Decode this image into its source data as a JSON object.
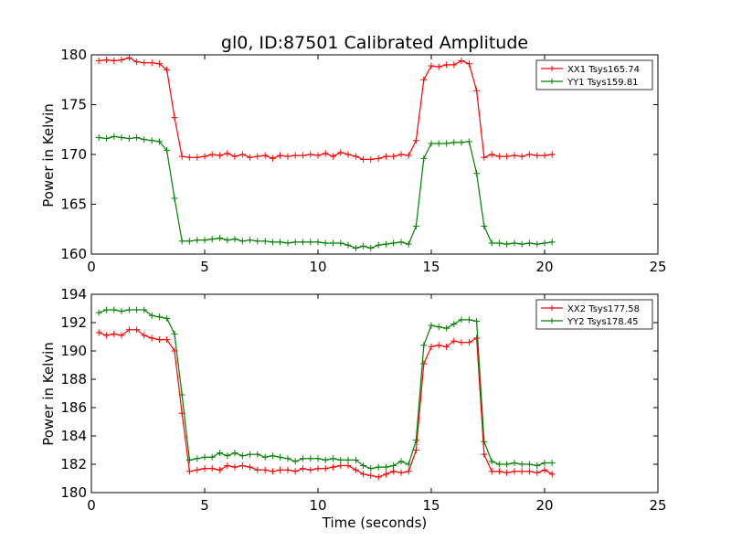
{
  "chart_data": [
    {
      "type": "line",
      "title": "gl0, ID:87501 Calibrated Amplitude",
      "xlabel": "",
      "ylabel": "Power in Kelvin",
      "xlim": [
        0,
        25
      ],
      "ylim": [
        160,
        180
      ],
      "xticks": [
        0,
        5,
        10,
        15,
        20,
        25
      ],
      "yticks": [
        160,
        165,
        170,
        175,
        180
      ],
      "legend_position": "top-right",
      "x": [
        0.33,
        0.67,
        1.0,
        1.33,
        1.67,
        2.0,
        2.33,
        2.67,
        3.0,
        3.33,
        3.67,
        4.0,
        4.33,
        4.67,
        5.0,
        5.33,
        5.67,
        6.0,
        6.33,
        6.67,
        7.0,
        7.33,
        7.67,
        8.0,
        8.33,
        8.67,
        9.0,
        9.33,
        9.67,
        10.0,
        10.33,
        10.67,
        11.0,
        11.33,
        11.67,
        12.0,
        12.33,
        12.67,
        13.0,
        13.33,
        13.67,
        14.0,
        14.33,
        14.67,
        15.0,
        15.33,
        15.67,
        16.0,
        16.33,
        16.67,
        17.0,
        17.33,
        17.67,
        18.0,
        18.33,
        18.67,
        19.0,
        19.33,
        19.67,
        20.0,
        20.33
      ],
      "series": [
        {
          "name": "XX1 Tsys165.74",
          "color": "#ff0000",
          "values": [
            179.4,
            179.5,
            179.4,
            179.5,
            179.7,
            179.3,
            179.2,
            179.2,
            179.1,
            178.5,
            173.7,
            169.8,
            169.7,
            169.7,
            169.8,
            170.0,
            169.9,
            170.1,
            169.8,
            170.0,
            169.7,
            169.8,
            169.9,
            169.6,
            169.9,
            169.8,
            169.9,
            169.9,
            170.0,
            169.9,
            170.1,
            169.8,
            170.2,
            170.0,
            169.8,
            169.5,
            169.5,
            169.6,
            169.8,
            169.8,
            170.0,
            169.9,
            171.4,
            177.5,
            178.9,
            178.8,
            179.0,
            179.0,
            179.4,
            179.1,
            176.4,
            169.7,
            170.0,
            169.8,
            169.8,
            169.9,
            169.8,
            170.0,
            169.9,
            169.9,
            170.0
          ]
        },
        {
          "name": "YY1 Tsys159.81",
          "color": "#008000",
          "values": [
            171.7,
            171.6,
            171.8,
            171.7,
            171.6,
            171.7,
            171.5,
            171.4,
            171.3,
            170.4,
            165.6,
            161.3,
            161.3,
            161.4,
            161.4,
            161.5,
            161.6,
            161.4,
            161.5,
            161.3,
            161.4,
            161.3,
            161.3,
            161.2,
            161.2,
            161.1,
            161.2,
            161.2,
            161.2,
            161.2,
            161.1,
            161.1,
            161.1,
            160.9,
            160.6,
            160.8,
            160.6,
            160.9,
            161.0,
            161.1,
            161.2,
            161.0,
            162.8,
            169.6,
            171.1,
            171.1,
            171.1,
            171.2,
            171.2,
            171.3,
            168.1,
            162.8,
            161.1,
            161.1,
            161.0,
            161.1,
            161.0,
            161.1,
            161.0,
            161.1,
            161.2
          ]
        }
      ]
    },
    {
      "type": "line",
      "title": "",
      "xlabel": "Time (seconds)",
      "ylabel": "Power in Kelvin",
      "xlim": [
        0,
        25
      ],
      "ylim": [
        180,
        194
      ],
      "xticks": [
        0,
        5,
        10,
        15,
        20,
        25
      ],
      "yticks": [
        180,
        182,
        184,
        186,
        188,
        190,
        192,
        194
      ],
      "legend_position": "top-right",
      "x": [
        0.33,
        0.67,
        1.0,
        1.33,
        1.67,
        2.0,
        2.33,
        2.67,
        3.0,
        3.33,
        3.67,
        4.0,
        4.33,
        4.67,
        5.0,
        5.33,
        5.67,
        6.0,
        6.33,
        6.67,
        7.0,
        7.33,
        7.67,
        8.0,
        8.33,
        8.67,
        9.0,
        9.33,
        9.67,
        10.0,
        10.33,
        10.67,
        11.0,
        11.33,
        11.67,
        12.0,
        12.33,
        12.67,
        13.0,
        13.33,
        13.67,
        14.0,
        14.33,
        14.67,
        15.0,
        15.33,
        15.67,
        16.0,
        16.33,
        16.67,
        17.0,
        17.33,
        17.67,
        18.0,
        18.33,
        18.67,
        19.0,
        19.33,
        19.67,
        20.0,
        20.33
      ],
      "series": [
        {
          "name": "XX2 Tsys177.58",
          "color": "#ff0000",
          "values": [
            191.3,
            191.1,
            191.2,
            191.1,
            191.5,
            191.5,
            191.1,
            190.9,
            190.8,
            190.8,
            190.0,
            185.6,
            181.5,
            181.6,
            181.7,
            181.7,
            181.6,
            181.9,
            181.8,
            181.9,
            181.8,
            181.6,
            181.6,
            181.5,
            181.6,
            181.6,
            181.5,
            181.7,
            181.6,
            181.7,
            181.7,
            181.8,
            181.9,
            181.9,
            181.6,
            181.3,
            181.2,
            181.1,
            181.3,
            181.5,
            181.4,
            181.5,
            183.0,
            189.1,
            190.3,
            190.4,
            190.3,
            190.7,
            190.6,
            190.6,
            190.9,
            182.7,
            181.5,
            181.5,
            181.4,
            181.5,
            181.5,
            181.5,
            181.4,
            181.6,
            181.3
          ]
        },
        {
          "name": "YY2 Tsys178.45",
          "color": "#008000",
          "values": [
            192.7,
            192.9,
            192.9,
            192.8,
            192.9,
            192.9,
            192.9,
            192.5,
            192.4,
            192.3,
            191.2,
            186.9,
            182.3,
            182.4,
            182.5,
            182.5,
            182.8,
            182.6,
            182.8,
            182.6,
            182.7,
            182.7,
            182.5,
            182.6,
            182.5,
            182.4,
            182.2,
            182.4,
            182.4,
            182.4,
            182.3,
            182.4,
            182.3,
            182.3,
            182.3,
            181.9,
            181.7,
            181.8,
            181.8,
            181.9,
            182.2,
            182.0,
            183.7,
            190.4,
            191.8,
            191.7,
            191.6,
            191.9,
            192.2,
            192.2,
            192.1,
            183.6,
            182.2,
            182.0,
            182.0,
            182.1,
            182.0,
            182.0,
            181.9,
            182.1,
            182.1
          ]
        }
      ]
    }
  ]
}
